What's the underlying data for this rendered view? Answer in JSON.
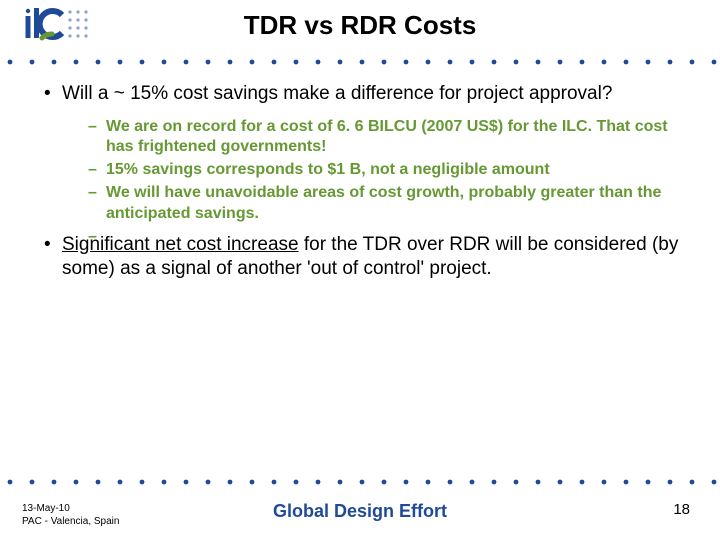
{
  "title": "TDR vs RDR Costs",
  "logo": {
    "primary_color": "#1f4999",
    "accent_color": "#669933",
    "dot_color": "#8aa3c9"
  },
  "dots": {
    "color": "#1f4999",
    "radius": 2.4,
    "spacing": 22
  },
  "bullets": [
    {
      "level": 1,
      "text": "Will a ~ 15% cost savings make a difference for project approval?"
    },
    {
      "level": 2,
      "text": "We are on record for a cost of 6. 6 BILCU (2007 US$) for the ILC.  That cost has frightened governments!"
    },
    {
      "level": 2,
      "text": "15% savings corresponds to $1 B, not a negligible amount"
    },
    {
      "level": 2,
      "text": "We will have unavoidable areas of cost growth, probably greater than the anticipated savings."
    },
    {
      "level": 2,
      "text": ""
    },
    {
      "level": 1,
      "underline": "Significant net cost increase",
      "text_after": " for the TDR over RDR will be considered (by some) as a signal of another 'out of control' project."
    }
  ],
  "footer": {
    "date": "13-May-10",
    "location": "PAC - Valencia, Spain",
    "center": "Global Design Effort",
    "page": "18"
  },
  "colors": {
    "title": "#000000",
    "body": "#000000",
    "sub_bullet": "#669933",
    "footer_center": "#1f4999",
    "background": "#ffffff"
  },
  "fonts": {
    "title_size": 26,
    "body_size": 19,
    "sub_size": 16,
    "footer_small": 10,
    "footer_center": 18,
    "footer_page": 15
  }
}
